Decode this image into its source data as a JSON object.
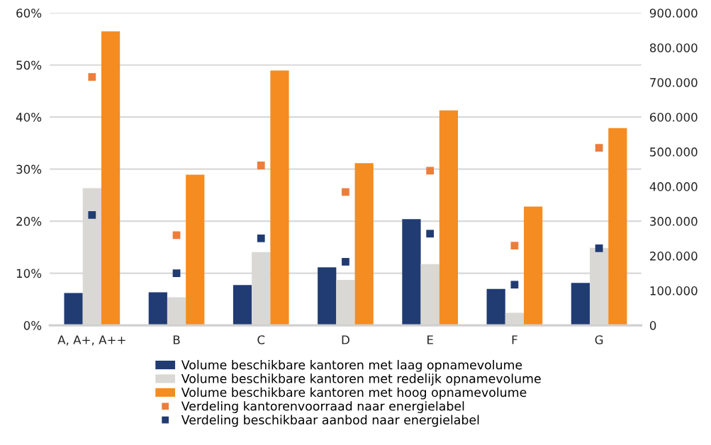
{
  "chart_data": {
    "type": "bar",
    "categories": [
      "A, A+, A++",
      "B",
      "C",
      "D",
      "E",
      "F",
      "G"
    ],
    "series": [
      {
        "name": "Volume beschikbare kantoren met laag opnamevolume",
        "axis": "y2",
        "color": "#213b73",
        "values": [
          93000,
          95000,
          116000,
          167000,
          306000,
          105000,
          122000
        ]
      },
      {
        "name": "Volume beschikbare kantoren met redelijk opnamevolume",
        "axis": "y2",
        "color": "#d9d8d4",
        "values": [
          395000,
          81000,
          211000,
          131000,
          176000,
          36000,
          223000
        ]
      },
      {
        "name": "Volume beschikbare kantoren met hoog opnamevolume",
        "axis": "y2",
        "color": "#f48c22",
        "values": [
          847000,
          434000,
          734000,
          467000,
          619000,
          342000,
          568000
        ]
      },
      {
        "name": "Verdeling kantorenvoorraad naar energielabel",
        "type": "scatter",
        "axis": "y",
        "color": "#ed7d3a",
        "values": [
          47.7,
          17.3,
          30.7,
          25.6,
          29.7,
          15.3,
          34.1
        ]
      },
      {
        "name": "Verdeling beschikbaar aanbod naar energielabel",
        "type": "scatter",
        "axis": "y",
        "color": "#213b73",
        "values": [
          21.2,
          10.0,
          16.7,
          12.2,
          17.6,
          7.8,
          14.8
        ]
      }
    ],
    "ylim": [
      0,
      60
    ],
    "yticks": [
      {
        "value": 0,
        "label": "0%"
      },
      {
        "value": 10,
        "label": "10%"
      },
      {
        "value": 20,
        "label": "20%"
      },
      {
        "value": 30,
        "label": "30%"
      },
      {
        "value": 40,
        "label": "40%"
      },
      {
        "value": 50,
        "label": "50%"
      },
      {
        "value": 60,
        "label": "60%"
      }
    ],
    "y2lim": [
      0,
      900000
    ],
    "y2ticks": [
      {
        "value": 0,
        "label": "0"
      },
      {
        "value": 100000,
        "label": "100.000"
      },
      {
        "value": 200000,
        "label": "200.000"
      },
      {
        "value": 300000,
        "label": "300.000"
      },
      {
        "value": 400000,
        "label": "400.000"
      },
      {
        "value": 500000,
        "label": "500.000"
      },
      {
        "value": 600000,
        "label": "600.000"
      },
      {
        "value": 700000,
        "label": "700.000"
      },
      {
        "value": 800000,
        "label": "800.000"
      },
      {
        "value": 900000,
        "label": "900.000"
      }
    ],
    "grid": "y",
    "legend": "bottom",
    "marker": "square"
  }
}
